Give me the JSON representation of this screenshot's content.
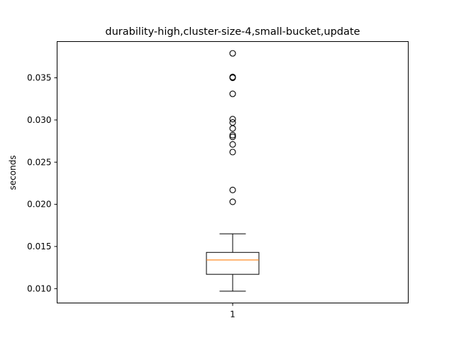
{
  "chart_data": {
    "type": "box",
    "title": "durability-high,cluster-size-4,small-bucket,update",
    "xlabel": "",
    "ylabel": "seconds",
    "categories": [
      "1"
    ],
    "ylim": [
      0.0083,
      0.0393
    ],
    "yticks": [
      0.01,
      0.015,
      0.02,
      0.025,
      0.03,
      0.035
    ],
    "ytick_labels": [
      "0.010",
      "0.015",
      "0.020",
      "0.025",
      "0.030",
      "0.035"
    ],
    "grid": false,
    "box": {
      "whisker_low": 0.0097,
      "q1": 0.0117,
      "median": 0.0134,
      "q3": 0.0143,
      "whisker_high": 0.0165,
      "outliers": [
        0.0203,
        0.0217,
        0.0262,
        0.0271,
        0.028,
        0.0282,
        0.029,
        0.0297,
        0.0301,
        0.0331,
        0.035,
        0.0351,
        0.0379
      ]
    },
    "colors": {
      "box": "#000000",
      "median": "#ff7f0e",
      "outlier": "#000000"
    }
  }
}
